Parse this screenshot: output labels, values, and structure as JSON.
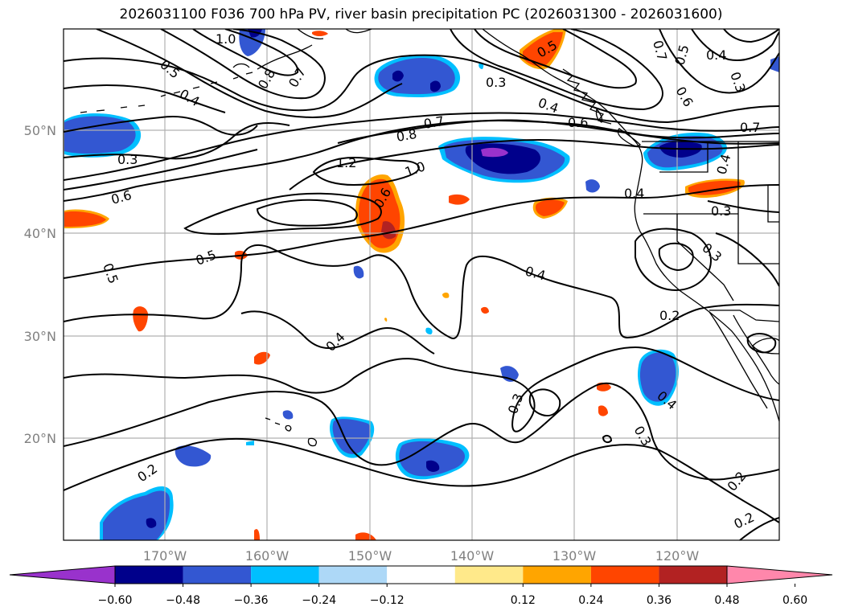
{
  "title": "2026031100 F036 700 hPa PV, river basin precipitation PC (2026031300 - 2026031600)",
  "map": {
    "lon_labels": [
      "170°W",
      "160°W",
      "150°W",
      "140°W",
      "130°W",
      "120°W"
    ],
    "lat_labels": [
      "50°N",
      "40°N",
      "30°N",
      "20°N"
    ],
    "contour_labels": [
      "1.0",
      "0.5",
      "0.4",
      "0.8",
      "0.7",
      "0.5",
      "0.3",
      "0.4",
      "0.6",
      "0.7",
      "0.5",
      "0.4",
      "0.3",
      "0.6",
      "0.7",
      "0.3",
      "1.2",
      "0.8",
      "0.7",
      "1.0",
      "0.6",
      "0.4",
      "0.6",
      "0.4",
      "0.5",
      "0.5",
      "0.3",
      "0.4",
      "0.3",
      "0.2",
      "0.4",
      "0.3",
      "0.4",
      "0.3",
      "0.2",
      "0.2",
      "0.2"
    ]
  },
  "colorbar": {
    "tick_labels": [
      "−0.60",
      "−0.48",
      "−0.36",
      "−0.24",
      "−0.12",
      "0.12",
      "0.24",
      "0.36",
      "0.48",
      "0.60"
    ],
    "colors": [
      "#9932cc",
      "#00008b",
      "#3357d2",
      "#00bfff",
      "#add8f7",
      "#ffffff",
      "#ffe98a",
      "#ffa500",
      "#ff4500",
      "#b22222",
      "#ff87ab"
    ]
  },
  "colors": {
    "contour": "#000000",
    "coastline": "#000000",
    "grid": "#b0b0b0"
  }
}
